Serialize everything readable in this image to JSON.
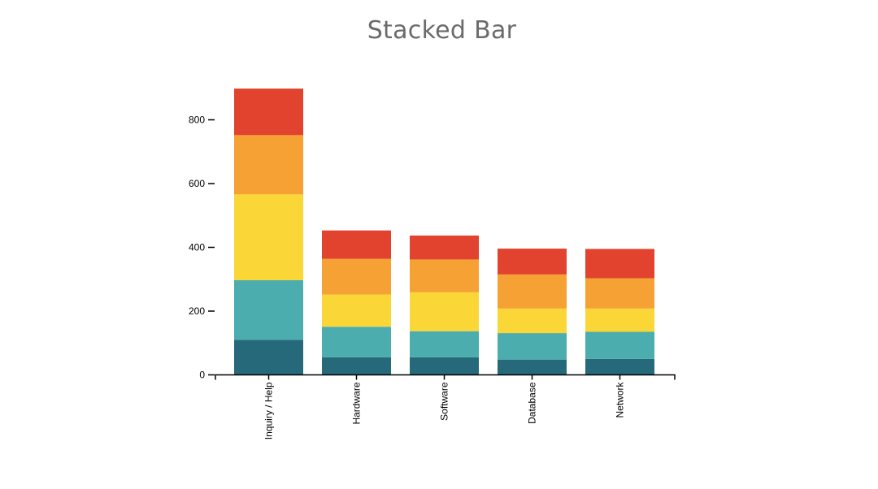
{
  "chart_data": {
    "type": "bar",
    "stacked": true,
    "title": "Stacked Bar",
    "xlabel": "",
    "ylabel": "",
    "ylim": [
      0,
      900
    ],
    "yticks": [
      0,
      200,
      400,
      600,
      800
    ],
    "categories": [
      "Inquiry / Help",
      "Hardware",
      "Software",
      "Database",
      "Network"
    ],
    "series": [
      {
        "color": "#26697a",
        "values": [
          110,
          55,
          55,
          48,
          50
        ]
      },
      {
        "color": "#4badad",
        "values": [
          187,
          96,
          82,
          83,
          85
        ]
      },
      {
        "color": "#fad637",
        "values": [
          269,
          101,
          122,
          77,
          73
        ]
      },
      {
        "color": "#f6a134",
        "values": [
          186,
          112,
          103,
          107,
          95
        ]
      },
      {
        "color": "#e2432e",
        "values": [
          146,
          89,
          75,
          81,
          92
        ]
      }
    ],
    "grid": false,
    "legend": "none"
  }
}
